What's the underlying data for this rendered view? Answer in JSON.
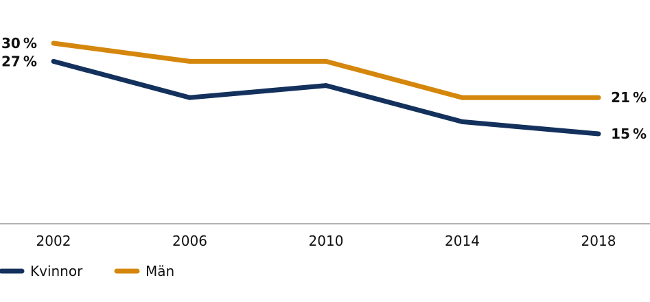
{
  "chart_data": {
    "type": "line",
    "title": "",
    "xlabel": "",
    "ylabel": "",
    "x": [
      "2002",
      "2006",
      "2010",
      "2014",
      "2018"
    ],
    "ylim": [
      0,
      30
    ],
    "grid": false,
    "legend_position": "bottom-left",
    "series": [
      {
        "name": "Kvinnor",
        "color": "#13315c",
        "values": [
          27,
          21,
          23,
          17,
          15
        ]
      },
      {
        "name": "Män",
        "color": "#d4870c",
        "values": [
          30,
          27,
          27,
          21,
          21
        ]
      }
    ],
    "data_labels": [
      {
        "series": "Män",
        "index": 0,
        "text": "30 %"
      },
      {
        "series": "Kvinnor",
        "index": 0,
        "text": "27 %"
      },
      {
        "series": "Män",
        "index": 4,
        "text": "21 %"
      },
      {
        "series": "Kvinnor",
        "index": 4,
        "text": "15 %"
      }
    ],
    "axis_color": "#999999"
  }
}
